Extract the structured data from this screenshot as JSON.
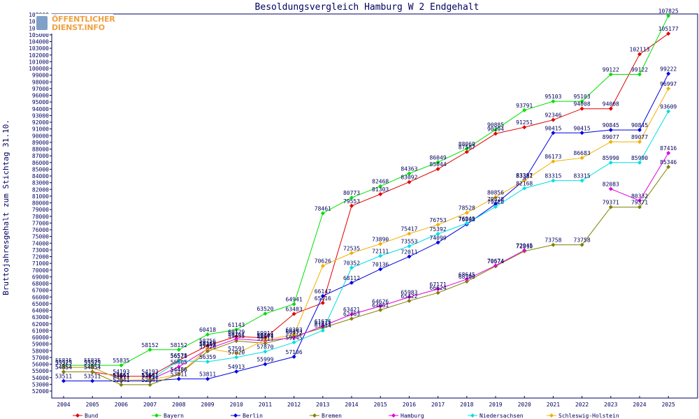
{
  "logo": {
    "line1": "ÖFFENTLICHER",
    "line2": "DIENST.INFO"
  },
  "chart_data": {
    "type": "line",
    "title": "Besoldungsvergleich Hamburg W 2 Endgehalt",
    "xlabel": "",
    "ylabel": "Bruttojahresgehalt zum Stichtag 31.10.",
    "ylim": [
      52000,
      108000
    ],
    "ytick_step": 1000,
    "grid": false,
    "legend_position": "bottom",
    "categories": [
      "2004",
      "2005",
      "2006",
      "2007",
      "2008",
      "2009",
      "2010",
      "2011",
      "2012",
      "2013",
      "2014",
      "2015",
      "2016",
      "2017",
      "2018",
      "2019",
      "2020",
      "2021",
      "2022",
      "2023",
      "2024",
      "2025"
    ],
    "series": [
      {
        "name": "Bund",
        "color": "#e00000",
        "values": [
          54854,
          54854,
          54193,
          54193,
          56578,
          58756,
          60129,
          59911,
          63483,
          65116,
          79553,
          81303,
          83092,
          85044,
          87587,
          90294,
          91251,
          92346,
          94008,
          94008,
          102113,
          105177
        ],
        "labels": [
          "54854",
          "54854",
          "54193",
          "54193",
          "56578",
          "58756",
          "60129",
          "59911",
          "63483",
          "65116",
          "79553",
          "81303",
          "83092",
          "85044",
          "87587",
          "90294",
          "91251",
          "92346",
          "94008",
          "94008",
          "102113",
          "105177"
        ]
      },
      {
        "name": "Bayern",
        "color": "#00e000",
        "values": [
          55835,
          55835,
          55835,
          58152,
          58152,
          60418,
          61143,
          63520,
          64941,
          78461,
          80773,
          82468,
          84363,
          86049,
          88069,
          90885,
          93791,
          95103,
          95103,
          99122,
          99122,
          107825
        ],
        "labels": [
          "55835",
          "55835",
          "55835",
          "58152",
          "58152",
          "60418",
          "61143",
          "63520",
          "64941",
          "78461",
          "80773",
          "82468",
          "84363",
          "86049",
          "88069",
          "90885",
          "93791",
          "95103",
          "95103",
          "99122",
          "99122",
          "107825"
        ]
      },
      {
        "name": "Berlin",
        "color": "#0000e0",
        "values": [
          53511,
          53511,
          53511,
          53511,
          53811,
          53811,
          54913,
          55999,
          57106,
          66147,
          68112,
          70136,
          72011,
          74099,
          76808,
          79828,
          83397,
          90415,
          90415,
          90845,
          90845,
          99222
        ],
        "labels": [
          "53511",
          "53511",
          "53511",
          "53511",
          "53811",
          "53811",
          "54913",
          "55999",
          "57106",
          "66147",
          "68112",
          "70136",
          "72011",
          "74099",
          "76808",
          "79828",
          "83397",
          "90415",
          "90415",
          "90845",
          "90845",
          "99222"
        ]
      },
      {
        "name": "Bremen",
        "color": "#808000",
        "values": [
          54854,
          54854,
          52941,
          52941,
          54486,
          57920,
          59455,
          59111,
          60153,
          61411,
          62763,
          64061,
          65422,
          66624,
          68300,
          70574,
          72810,
          73758,
          73758,
          79371,
          79371,
          85346
        ],
        "labels": [
          "54854",
          "54854",
          "52941",
          "52941",
          "54486",
          "57920",
          "59455",
          "59111",
          "60153",
          "61411",
          "62763",
          "64061",
          "65422",
          "66624",
          "68300",
          "70574",
          "72810",
          "73758",
          "73758",
          "79371",
          "79371",
          "85346"
        ]
      },
      {
        "name": "Hamburg",
        "color": "#e000e0",
        "values": [
          55525,
          55525,
          53661,
          53661,
          55605,
          58265,
          59761,
          59471,
          59972,
          61676,
          63421,
          64626,
          65983,
          67171,
          68645,
          70674,
          72945,
          null,
          null,
          82083,
          80332,
          87416
        ],
        "labels": [
          "55525",
          "55525",
          "53661",
          "53661",
          "55605",
          "58265",
          "59761",
          "59471",
          "59972",
          "61676",
          "63421",
          "64626",
          "65983",
          "67171",
          "68645",
          "70674",
          "72945",
          "",
          "",
          "82083",
          "80332",
          "87416"
        ]
      },
      {
        "name": "Niedersachsen",
        "color": "#00e0e0",
        "values": [
          55525,
          55525,
          53661,
          53661,
          56521,
          56359,
          57020,
          57870,
          59245,
          61014,
          70352,
          72111,
          73553,
          75392,
          76945,
          79420,
          82168,
          83315,
          83315,
          85990,
          85990,
          93609
        ],
        "labels": [
          "55525",
          "55525",
          "53661",
          "53661",
          "56521",
          "56359",
          "57020",
          "57870",
          "59245",
          "61014",
          "70352",
          "72111",
          "73553",
          "75392",
          "76945",
          "79420",
          "82168",
          "83315",
          "83315",
          "85990",
          "85990",
          "93609"
        ]
      },
      {
        "name": "Schleswig-Holstein",
        "color": "#f0b000",
        "values": [
          55525,
          55525,
          53661,
          53661,
          54486,
          58359,
          57591,
          59604,
          60393,
          70626,
          72535,
          73890,
          75417,
          76753,
          78528,
          80856,
          83311,
          86173,
          86683,
          89077,
          89077,
          96997
        ],
        "labels": [
          "55525",
          "55525",
          "53661",
          "53661",
          "54486",
          "58359",
          "57591",
          "59604",
          "60393",
          "70626",
          "72535",
          "73890",
          "75417",
          "76753",
          "78528",
          "80856",
          "83311",
          "86173",
          "86683",
          "89077",
          "89077",
          "96997"
        ]
      }
    ]
  }
}
